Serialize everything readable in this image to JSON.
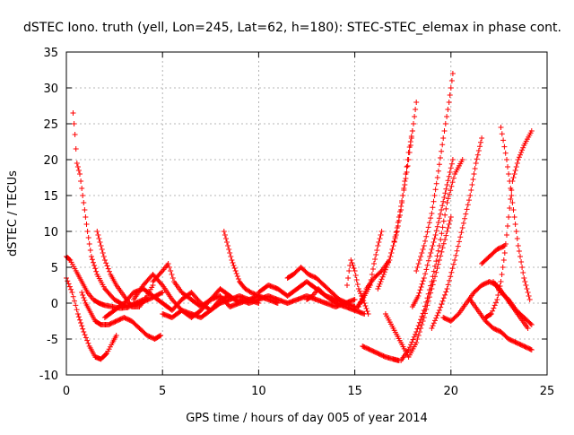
{
  "chart_data": {
    "type": "scatter",
    "title": "dSTEC Iono. truth (yell, Lon=245, Lat=62, h=180): STEC-STEC_elemax in phase cont.",
    "xlabel": "GPS time / hours of day 005 of year 2014",
    "ylabel": "dSTEC  / TECUs",
    "xlim": [
      0,
      25
    ],
    "ylim": [
      -10,
      35
    ],
    "xticks": [
      0,
      5,
      10,
      15,
      20,
      25
    ],
    "yticks": [
      -10,
      -5,
      0,
      5,
      10,
      15,
      20,
      25,
      30,
      35
    ],
    "grid": true,
    "legend": "none",
    "marker": "+",
    "color": "#ff0000",
    "series": [
      {
        "x": [
          0.35,
          0.45,
          0.55,
          0.7,
          0.9,
          1.1,
          1.3,
          1.6,
          2.0,
          2.5,
          3.0,
          3.5,
          4.0,
          4.5,
          5.0
        ],
        "y": [
          26.5,
          23.5,
          19.5,
          18.0,
          14.0,
          10.0,
          6.5,
          4.0,
          2.0,
          0.5,
          -0.3,
          -0.2,
          0.2,
          0.8,
          1.5
        ]
      },
      {
        "x": [
          0.0,
          0.2,
          0.5,
          0.8,
          1.1,
          1.4,
          1.7,
          2.0,
          2.4,
          2.8,
          3.2,
          3.6,
          4.0
        ],
        "y": [
          6.5,
          6.0,
          4.5,
          3.0,
          1.5,
          0.5,
          0.0,
          -0.3,
          -0.5,
          -0.7,
          -0.6,
          0.0,
          0.5
        ]
      },
      {
        "x": [
          0.0,
          0.3,
          0.6,
          0.9,
          1.2,
          1.5,
          1.8,
          2.1,
          2.4,
          2.6
        ],
        "y": [
          3.5,
          1.5,
          -1.5,
          -4.0,
          -6.0,
          -7.5,
          -7.8,
          -7.0,
          -5.5,
          -4.5
        ]
      },
      {
        "x": [
          0.8,
          1.0,
          1.2,
          1.5,
          1.8,
          2.2,
          2.6,
          3.0,
          3.4,
          3.8,
          4.2,
          4.6,
          4.9
        ],
        "y": [
          1.5,
          0.0,
          -1.0,
          -2.5,
          -3.0,
          -3.0,
          -2.5,
          -2.0,
          -2.5,
          -3.5,
          -4.5,
          -5.0,
          -4.5
        ]
      },
      {
        "x": [
          1.6,
          1.8,
          2.0,
          2.3,
          2.6,
          3.0,
          3.4,
          3.8,
          4.2,
          4.5
        ],
        "y": [
          10.0,
          8.0,
          6.0,
          4.0,
          2.5,
          1.0,
          -0.5,
          -0.5,
          1.0,
          2.5
        ]
      },
      {
        "x": [
          2.0,
          2.5,
          3.0,
          3.5,
          4.0,
          4.5,
          5.0,
          5.5,
          6.0,
          6.5,
          7.0,
          7.5,
          8.0,
          8.5,
          9.0
        ],
        "y": [
          -2.0,
          -1.0,
          0.0,
          1.5,
          2.0,
          1.0,
          0.0,
          -1.0,
          0.5,
          1.5,
          0.0,
          -1.0,
          0.5,
          1.0,
          0.0
        ]
      },
      {
        "x": [
          3.5,
          4.0,
          4.5,
          5.0,
          5.5,
          6.0,
          6.5,
          7.0,
          7.5,
          8.0,
          8.5,
          9.0,
          9.5,
          10.0
        ],
        "y": [
          0.5,
          2.5,
          4.0,
          2.5,
          0.5,
          -1.0,
          -2.0,
          -1.0,
          0.5,
          1.0,
          -0.5,
          0.0,
          0.5,
          1.0
        ]
      },
      {
        "x": [
          4.5,
          5.0,
          5.3,
          5.6,
          6.0,
          6.5,
          7.0,
          7.5,
          8.0,
          8.5
        ],
        "y": [
          3.0,
          4.5,
          5.5,
          3.0,
          1.5,
          0.5,
          -0.5,
          0.5,
          2.0,
          1.0
        ]
      },
      {
        "x": [
          5.0,
          5.5,
          6.0,
          6.5,
          7.0,
          7.5,
          8.0,
          8.5,
          9.0,
          9.5,
          10.0
        ],
        "y": [
          -1.5,
          -2.0,
          -1.0,
          -1.5,
          -2.0,
          -1.0,
          0.0,
          0.5,
          1.0,
          0.5,
          0.0
        ]
      },
      {
        "x": [
          8.2,
          8.4,
          8.6,
          8.8,
          9.0,
          9.3,
          9.6,
          10.0,
          10.5,
          11.0
        ],
        "y": [
          10.0,
          8.0,
          6.0,
          4.5,
          3.0,
          2.0,
          1.5,
          1.0,
          0.5,
          0.0
        ]
      },
      {
        "x": [
          9.0,
          9.5,
          10.0,
          10.5,
          11.0,
          11.5,
          12.0,
          12.5,
          13.0,
          13.5,
          14.0,
          14.5,
          15.0
        ],
        "y": [
          0.5,
          0.0,
          0.5,
          1.0,
          0.5,
          0.0,
          0.5,
          1.0,
          0.5,
          0.0,
          -0.5,
          0.0,
          0.5
        ]
      },
      {
        "x": [
          10.0,
          10.5,
          11.0,
          11.5,
          12.0,
          12.5,
          13.0,
          13.5,
          14.0,
          14.5,
          15.0
        ],
        "y": [
          1.5,
          2.5,
          2.0,
          1.0,
          2.0,
          3.0,
          2.0,
          1.0,
          0.5,
          0.0,
          -0.5
        ]
      },
      {
        "x": [
          11.5,
          11.8,
          12.2,
          12.6,
          13.0,
          13.4,
          13.8,
          14.2,
          14.6
        ],
        "y": [
          3.5,
          4.0,
          5.0,
          4.0,
          3.5,
          2.5,
          1.5,
          0.5,
          0.0
        ]
      },
      {
        "x": [
          12.5,
          12.8,
          13.1,
          13.5,
          14.0,
          14.5,
          15.0,
          15.5
        ],
        "y": [
          0.5,
          1.0,
          2.0,
          1.0,
          0.0,
          -0.5,
          -1.0,
          -1.5
        ]
      },
      {
        "x": [
          14.6,
          14.7,
          14.8,
          15.0,
          15.2,
          15.5,
          15.7
        ],
        "y": [
          2.5,
          4.5,
          6.0,
          4.5,
          2.0,
          0.0,
          -1.5
        ]
      },
      {
        "x": [
          15.0,
          15.4,
          15.8,
          16.0,
          16.2,
          16.4
        ],
        "y": [
          -1.0,
          0.5,
          2.5,
          5.5,
          8.0,
          10.0
        ]
      },
      {
        "x": [
          15.2,
          15.6,
          16.0,
          16.4,
          16.8,
          17.0,
          17.2,
          17.4,
          17.6,
          17.8,
          18.0
        ],
        "y": [
          -0.5,
          2.0,
          3.5,
          4.5,
          6.0,
          8.0,
          10.0,
          13.0,
          17.0,
          21.0,
          24.0
        ]
      },
      {
        "x": [
          16.2,
          16.5,
          16.8,
          17.0,
          17.2,
          17.4,
          17.6,
          17.8,
          18.0,
          18.2
        ],
        "y": [
          2.0,
          4.0,
          6.0,
          8.0,
          10.5,
          13.5,
          16.5,
          20.0,
          24.0,
          28.0
        ]
      },
      {
        "x": [
          15.4,
          15.8,
          16.2,
          16.6,
          17.0,
          17.3
        ],
        "y": [
          -6.0,
          -6.5,
          -7.0,
          -7.5,
          -7.8,
          -8.0
        ]
      },
      {
        "x": [
          16.6,
          17.0,
          17.4,
          17.8,
          18.2,
          18.6,
          19.0,
          19.4,
          19.8,
          20.0
        ],
        "y": [
          -1.5,
          -3.5,
          -5.5,
          -7.5,
          -5.5,
          -2.0,
          2.0,
          6.0,
          10.0,
          12.0
        ]
      },
      {
        "x": [
          17.4,
          17.8,
          18.2,
          18.6,
          19.0,
          19.4,
          19.8,
          20.2,
          20.6
        ],
        "y": [
          -8.0,
          -6.5,
          -4.0,
          -1.0,
          3.0,
          8.0,
          14.0,
          18.0,
          20.0
        ]
      },
      {
        "x": [
          18.2,
          18.6,
          19.0,
          19.3,
          19.6,
          19.9,
          20.1
        ],
        "y": [
          4.5,
          8.0,
          12.5,
          17.5,
          23.0,
          28.0,
          32.0
        ]
      },
      {
        "x": [
          18.0,
          18.3,
          18.6,
          18.9,
          19.2,
          19.5,
          19.8,
          20.1
        ],
        "y": [
          -0.5,
          1.0,
          3.5,
          6.5,
          9.5,
          13.0,
          16.5,
          20.0
        ]
      },
      {
        "x": [
          19.0,
          19.4,
          19.8,
          20.2,
          20.6,
          21.0,
          21.3,
          21.6
        ],
        "y": [
          -3.5,
          -1.0,
          2.0,
          6.0,
          10.5,
          15.0,
          19.5,
          23.0
        ]
      },
      {
        "x": [
          19.6,
          20.0,
          20.4,
          20.8,
          21.2,
          21.6,
          22.0,
          22.4,
          22.8,
          23.2,
          23.6,
          24.0
        ],
        "y": [
          -2.0,
          -2.5,
          -1.5,
          0.0,
          1.5,
          2.5,
          3.0,
          2.5,
          1.0,
          -0.5,
          -2.0,
          -3.5
        ]
      },
      {
        "x": [
          21.0,
          21.4,
          21.8,
          22.2,
          22.6,
          23.0,
          23.4,
          23.8,
          24.2
        ],
        "y": [
          0.5,
          -1.0,
          -2.5,
          -3.5,
          -4.0,
          -5.0,
          -5.5,
          -6.0,
          -6.5
        ]
      },
      {
        "x": [
          21.8,
          22.1,
          22.4,
          22.6,
          22.8,
          23.0,
          23.2,
          23.5,
          23.8,
          24.2
        ],
        "y": [
          -2.0,
          -1.5,
          0.5,
          3.0,
          7.0,
          12.0,
          17.0,
          20.0,
          22.0,
          24.0
        ]
      },
      {
        "x": [
          22.6,
          22.9,
          23.2,
          23.5,
          23.8,
          24.1
        ],
        "y": [
          24.5,
          20.0,
          14.0,
          8.0,
          3.5,
          0.5
        ]
      },
      {
        "x": [
          21.6,
          22.0,
          22.4,
          22.8
        ],
        "y": [
          5.5,
          6.5,
          7.5,
          8.0
        ]
      },
      {
        "x": [
          22.2,
          22.6,
          23.0,
          23.4,
          23.8,
          24.2
        ],
        "y": [
          3.0,
          1.5,
          0.5,
          -1.0,
          -2.0,
          -3.0
        ]
      }
    ]
  }
}
